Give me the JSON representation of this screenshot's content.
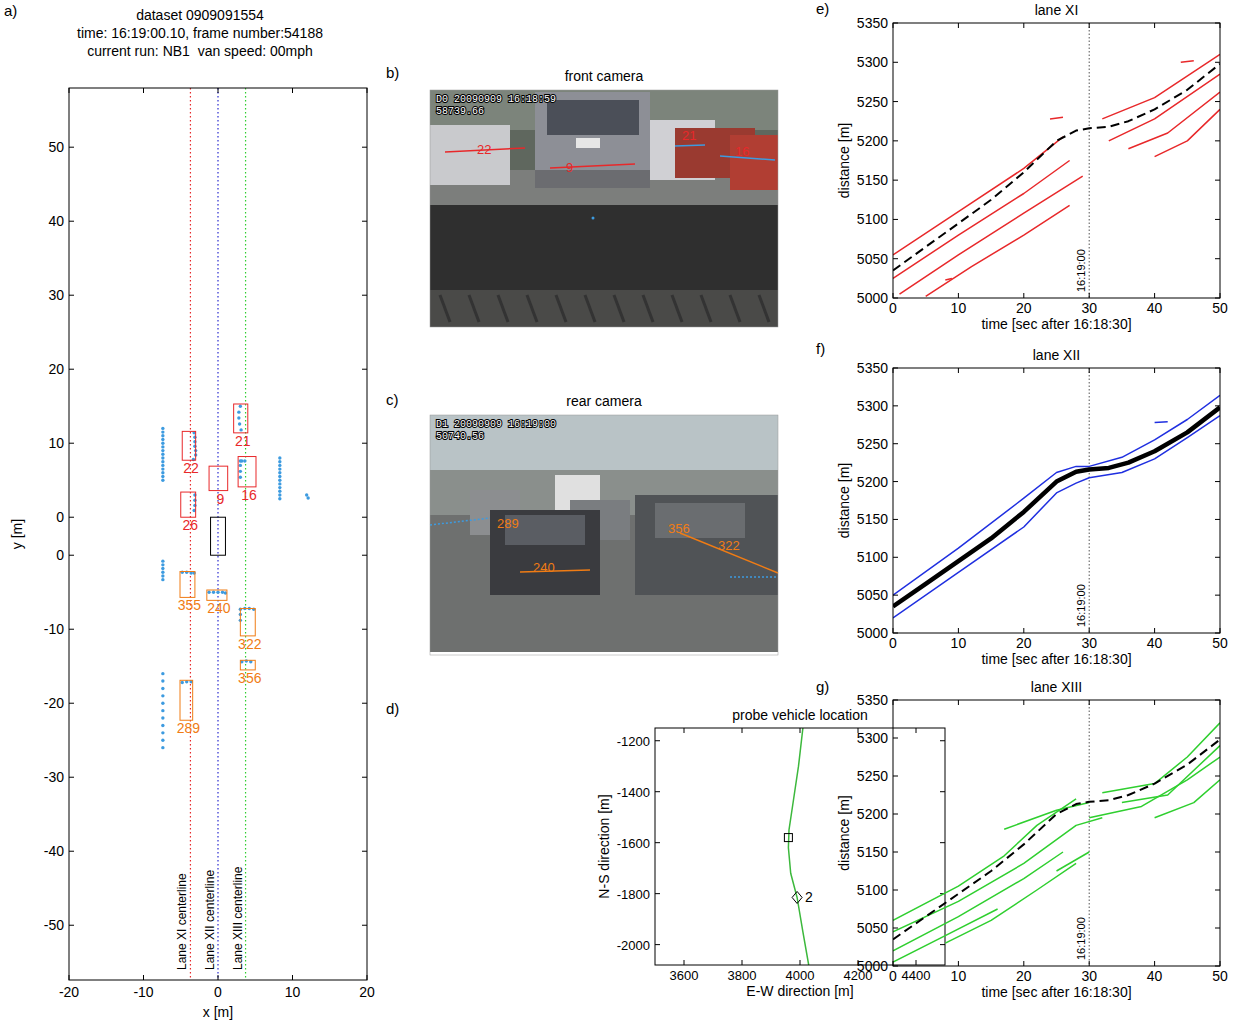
{
  "panel_labels": [
    "a)",
    "b)",
    "c)",
    "d)",
    "e)",
    "f)",
    "g)"
  ],
  "cameras": [
    {
      "title": "front camera",
      "timestamp": "D0 20090909 16:18:59",
      "counter": "58739.66",
      "color": "#e8282a",
      "labels": [
        "22",
        "9",
        "21",
        "16"
      ]
    },
    {
      "title": "rear camera",
      "timestamp": "D1 20090909 16:19:00",
      "counter": "50740.56",
      "color": "#f07c14",
      "labels": [
        "289",
        "240",
        "356",
        "322"
      ]
    }
  ],
  "chart_data": [
    {
      "type": "scatter",
      "title": [
        "dataset 0909091554",
        "time: 16:19:00.10, frame number:54188",
        "current run: NB1  van speed: 00mph"
      ],
      "xlabel": "x [m]",
      "ylabel": "y [m]",
      "xlim": [
        -20,
        20
      ],
      "xticks": [
        -20,
        -10,
        0,
        10,
        20
      ],
      "ylim": [
        -57.4,
        58
      ],
      "yticks": [
        50,
        40,
        30,
        20,
        10,
        0,
        0,
        -10,
        -20,
        -30,
        -40,
        -50
      ],
      "lanes": [
        {
          "label": "Lane XI centerline",
          "x": -3.7,
          "color": "#e8282a",
          "line_style": "dotted"
        },
        {
          "label": "Lane XII centerline",
          "x": 0,
          "color": "#2a2ad0",
          "line_style": "dotted"
        },
        {
          "label": "Lane XIII centerline",
          "x": 3.7,
          "color": "#2fcf2f",
          "line_style": "dotted"
        }
      ],
      "front_vehicles": {
        "color": "#e8282a",
        "boxes": [
          {
            "label": "22",
            "x": [
              -4.8,
              -3.0
            ],
            "y": [
              7.7,
              11.6
            ]
          },
          {
            "label": "9",
            "x": [
              -1.2,
              1.3
            ],
            "y": [
              3.6,
              6.9
            ]
          },
          {
            "label": "26",
            "x": [
              -5.0,
              -3.0
            ],
            "y": [
              0,
              3.4
            ]
          },
          {
            "label": "21",
            "x": [
              2.1,
              4.0
            ],
            "y": [
              11.4,
              15.3
            ]
          },
          {
            "label": "16",
            "x": [
              2.7,
              5.1
            ],
            "y": [
              4.1,
              8.2
            ]
          }
        ]
      },
      "rear_vehicles": {
        "color": "#f07c14",
        "boxes": [
          {
            "label": "355",
            "x": [
              -5.1,
              -3.1
            ],
            "y": [
              -5.7,
              -2.2
            ]
          },
          {
            "label": "240",
            "x": [
              -1.5,
              1.2
            ],
            "y": [
              -6.1,
              -4.7
            ]
          },
          {
            "label": "322",
            "x": [
              3.0,
              5.0
            ],
            "y": [
              -10.9,
              -7.2
            ]
          },
          {
            "label": "356",
            "x": [
              3.0,
              5.0
            ],
            "y": [
              -15.5,
              -14.2
            ]
          },
          {
            "label": "289",
            "x": [
              -5.1,
              -3.4
            ],
            "y": [
              -22.3,
              -16.9
            ]
          }
        ]
      },
      "points": {
        "color": "#3d9be0",
        "marker": "circle",
        "x": [
          -7.4,
          -7.4,
          -7.4,
          -7.4,
          -7.4,
          -7.4,
          -7.4,
          -7.4,
          -7.4,
          -7.4,
          -7.4,
          -7.4,
          -7.4,
          -7.4,
          -7.4,
          8.3,
          8.3,
          8.3,
          8.3,
          8.3,
          8.3,
          8.3,
          8.3,
          8.3,
          8.3,
          8.3,
          8.3,
          11.9,
          12.1,
          -3.2,
          -3.1,
          -3.1,
          -3.1,
          -3.0,
          -3.0,
          -3.3,
          3.0,
          2.8,
          2.8,
          2.9,
          3.1,
          3.0,
          3.2,
          3.6,
          3.0,
          3.0,
          3.0,
          -3.1,
          -3.1,
          -3.1,
          -3.2,
          -7.4,
          -7.4,
          -7.4,
          -7.4,
          -7.4,
          -7.4,
          -4.8,
          -4.2,
          -3.6,
          -3.2,
          -1.2,
          -0.6,
          0,
          0.6,
          1.0,
          3.0,
          3.6,
          4.2,
          4.8,
          3.0,
          3.0,
          3.2,
          3.8,
          4.4,
          -4.8,
          -4.2,
          -3.6,
          -7.4,
          -7.4,
          -7.4,
          -7.4,
          -7.4,
          -7.4,
          -7.4,
          -7.4,
          -7.4,
          -7.4,
          -7.4
        ],
        "y": [
          12,
          11.5,
          11,
          10.5,
          10,
          9.5,
          9,
          8.5,
          8,
          7.5,
          7,
          6.5,
          6,
          5.5,
          5,
          8,
          7.5,
          7,
          6.5,
          6,
          5.5,
          5,
          4.5,
          4,
          3.5,
          3,
          2.5,
          3.0,
          2.6,
          11.4,
          10.8,
          10.2,
          9.6,
          9.0,
          8.4,
          7.8,
          15.0,
          14.2,
          13.4,
          12.6,
          11.8,
          7.6,
          7.6,
          7.6,
          7.0,
          6.2,
          5.4,
          3.0,
          2.3,
          1.6,
          0.9,
          -0.8,
          -1.3,
          -1.8,
          -2.3,
          -2.8,
          -3.3,
          -2.3,
          -2.3,
          -2.4,
          -2.4,
          -5.0,
          -5.0,
          -5.0,
          -5.0,
          -5.1,
          -7.3,
          -7.2,
          -7.2,
          -7.3,
          -8.0,
          -8.8,
          -14.4,
          -14.3,
          -14.4,
          -17.2,
          -17.1,
          -17.1,
          -16,
          -17,
          -18,
          -19,
          -20,
          -21,
          -22,
          -23,
          -24,
          -25,
          -26
        ]
      }
    },
    {
      "type": "line",
      "title": "probe vehicle location",
      "xlabel": "E-W direction [m]",
      "ylabel": "N-S direction [m]",
      "xlim": [
        3500,
        4500
      ],
      "xticks": [
        3600,
        3800,
        4000,
        4200,
        4400
      ],
      "ylim": [
        -2080,
        -1150
      ],
      "yticks": [
        -2000,
        -1800,
        -1600,
        -1400,
        -1200
      ],
      "series": [
        {
          "color": "#3cb83c",
          "line_style": "solid",
          "x": [
            4010,
            3995,
            3975,
            3962,
            3960,
            3968,
            3990,
            4010,
            4030
          ],
          "values": [
            -1150,
            -1300,
            -1450,
            -1550,
            -1620,
            -1720,
            -1815,
            -1950,
            -2080
          ]
        }
      ],
      "markers": [
        {
          "marker": "square",
          "x": 3960,
          "y": -1580
        },
        {
          "marker": "diamond",
          "x": 3990,
          "y": -1815,
          "label": "2"
        }
      ]
    },
    {
      "type": "line",
      "title": "lane XI",
      "xlabel": "time [sec after 16:18:30]",
      "ylabel": "distance [m]",
      "xlim": [
        0,
        50
      ],
      "xticks": [
        0,
        10,
        20,
        30,
        40,
        50
      ],
      "ylim": [
        5000,
        5350
      ],
      "yticks": [
        5000,
        5050,
        5100,
        5150,
        5200,
        5250,
        5300,
        5350
      ],
      "reference_time": {
        "x": 30,
        "label": "16:19:00"
      },
      "series": [
        {
          "color": "#e8282a",
          "line_style": "solid",
          "x": [
            0,
            10,
            20,
            26
          ],
          "values": [
            5055,
            5110,
            5165,
            5205
          ]
        },
        {
          "color": "#e8282a",
          "line_style": "solid",
          "x": [
            0,
            10,
            20,
            27
          ],
          "values": [
            5025,
            5080,
            5133,
            5175
          ]
        },
        {
          "color": "#e8282a",
          "line_style": "solid",
          "x": [
            1,
            10,
            20,
            29
          ],
          "values": [
            5005,
            5055,
            5108,
            5155
          ]
        },
        {
          "color": "#e8282a",
          "line_style": "solid",
          "x": [
            5,
            12,
            20,
            27
          ],
          "values": [
            5002,
            5040,
            5080,
            5118
          ]
        },
        {
          "color": "#e8282a",
          "line_style": "solid",
          "x": [
            24,
            26
          ],
          "values": [
            5228,
            5230
          ]
        },
        {
          "color": "#e8282a",
          "line_style": "solid",
          "x": [
            32,
            40,
            50
          ],
          "values": [
            5228,
            5255,
            5310
          ]
        },
        {
          "color": "#e8282a",
          "line_style": "solid",
          "x": [
            33,
            40,
            50
          ],
          "values": [
            5200,
            5228,
            5285
          ]
        },
        {
          "color": "#e8282a",
          "line_style": "solid",
          "x": [
            36,
            42,
            50
          ],
          "values": [
            5190,
            5210,
            5262
          ]
        },
        {
          "color": "#e8282a",
          "line_style": "solid",
          "x": [
            40,
            45,
            50
          ],
          "values": [
            5180,
            5200,
            5240
          ]
        },
        {
          "color": "#e8282a",
          "line_style": "solid",
          "x": [
            44,
            46
          ],
          "values": [
            5300,
            5302
          ]
        },
        {
          "color": "#e8282a",
          "line_style": "solid",
          "x": [
            8,
            9
          ],
          "values": [
            5023,
            5025
          ]
        },
        {
          "color": "#000000",
          "line_style": "dashed",
          "x": [
            0,
            5,
            10,
            15,
            20,
            25,
            28,
            30,
            33,
            36,
            40,
            45,
            50
          ],
          "values": [
            5035,
            5065,
            5095,
            5125,
            5160,
            5200,
            5213,
            5216,
            5218,
            5225,
            5240,
            5265,
            5298
          ]
        }
      ]
    },
    {
      "type": "line",
      "title": "lane XII",
      "xlabel": "time [sec after 16:18:30]",
      "ylabel": "distance [m]",
      "xlim": [
        0,
        50
      ],
      "xticks": [
        0,
        10,
        20,
        30,
        40,
        50
      ],
      "ylim": [
        5000,
        5350
      ],
      "yticks": [
        5000,
        5050,
        5100,
        5150,
        5200,
        5250,
        5300,
        5350
      ],
      "reference_time": {
        "x": 30,
        "label": "16:19:00"
      },
      "series": [
        {
          "color": "#1f2fe0",
          "line_style": "solid",
          "x": [
            0,
            10,
            20,
            25,
            28,
            30,
            35,
            40,
            45,
            50
          ],
          "values": [
            5050,
            5112,
            5178,
            5212,
            5220,
            5220,
            5232,
            5255,
            5282,
            5314
          ]
        },
        {
          "color": "#1f2fe0",
          "line_style": "solid",
          "x": [
            0,
            10,
            20,
            25,
            28,
            30,
            35,
            40,
            45,
            50
          ],
          "values": [
            5020,
            5080,
            5140,
            5185,
            5198,
            5205,
            5212,
            5230,
            5258,
            5287
          ]
        },
        {
          "color": "#1f2fe0",
          "line_style": "solid",
          "x": [
            40,
            42
          ],
          "values": [
            5278,
            5279
          ]
        },
        {
          "color": "#000000",
          "line_style": "solid",
          "x": [
            0,
            5,
            10,
            15,
            20,
            25,
            28,
            30,
            33,
            36,
            40,
            45,
            50
          ],
          "values": [
            5035,
            5065,
            5095,
            5125,
            5160,
            5200,
            5213,
            5216,
            5218,
            5225,
            5240,
            5265,
            5298
          ]
        }
      ]
    },
    {
      "type": "line",
      "title": "lane XIII",
      "xlabel": "time [sec after 16:18:30]",
      "ylabel": "distance [m]",
      "xlim": [
        0,
        50
      ],
      "xticks": [
        0,
        10,
        20,
        30,
        40,
        50
      ],
      "ylim": [
        5000,
        5350
      ],
      "yticks": [
        5000,
        5050,
        5100,
        5150,
        5200,
        5250,
        5300,
        5350
      ],
      "reference_time": {
        "x": 30,
        "label": "16:19:00"
      },
      "series": [
        {
          "color": "#2fcf2f",
          "line_style": "solid",
          "x": [
            0,
            10,
            17,
            22,
            28
          ],
          "values": [
            5060,
            5105,
            5145,
            5185,
            5220
          ]
        },
        {
          "color": "#2fcf2f",
          "line_style": "solid",
          "x": [
            0,
            10,
            20,
            28,
            32
          ],
          "values": [
            5045,
            5085,
            5135,
            5185,
            5195
          ]
        },
        {
          "color": "#2fcf2f",
          "line_style": "solid",
          "x": [
            0,
            10,
            20,
            26
          ],
          "values": [
            5020,
            5065,
            5115,
            5150
          ]
        },
        {
          "color": "#2fcf2f",
          "line_style": "solid",
          "x": [
            0,
            8,
            16
          ],
          "values": [
            5005,
            5040,
            5075
          ]
        },
        {
          "color": "#2fcf2f",
          "line_style": "solid",
          "x": [
            8,
            15,
            22,
            28
          ],
          "values": [
            5030,
            5060,
            5100,
            5135
          ]
        },
        {
          "color": "#2fcf2f",
          "line_style": "solid",
          "x": [
            17,
            25,
            30
          ],
          "values": [
            5180,
            5205,
            5215
          ]
        },
        {
          "color": "#2fcf2f",
          "line_style": "solid",
          "x": [
            30,
            38,
            45,
            50
          ],
          "values": [
            5195,
            5210,
            5245,
            5275
          ]
        },
        {
          "color": "#2fcf2f",
          "line_style": "solid",
          "x": [
            32,
            40,
            45,
            50
          ],
          "values": [
            5228,
            5240,
            5275,
            5320
          ]
        },
        {
          "color": "#2fcf2f",
          "line_style": "solid",
          "x": [
            35,
            42,
            50
          ],
          "values": [
            5215,
            5225,
            5290
          ]
        },
        {
          "color": "#2fcf2f",
          "line_style": "solid",
          "x": [
            40,
            46,
            50
          ],
          "values": [
            5195,
            5215,
            5245
          ]
        },
        {
          "color": "#2fcf2f",
          "line_style": "solid",
          "x": [
            25,
            30
          ],
          "values": [
            5125,
            5150
          ]
        },
        {
          "color": "#000000",
          "line_style": "dashed",
          "x": [
            0,
            5,
            10,
            15,
            20,
            25,
            28,
            30,
            33,
            36,
            40,
            45,
            50
          ],
          "values": [
            5035,
            5065,
            5095,
            5125,
            5160,
            5200,
            5213,
            5216,
            5218,
            5225,
            5240,
            5265,
            5298
          ]
        }
      ]
    }
  ]
}
